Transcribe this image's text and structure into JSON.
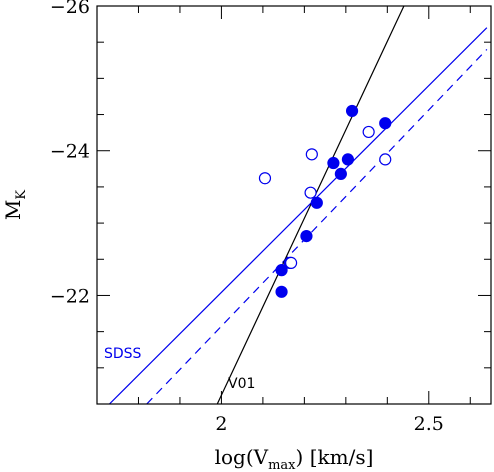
{
  "chart_data": {
    "type": "scatter",
    "title": "",
    "xlabel": {
      "base": "log(V",
      "sub": "max",
      "tail": ")  [km/s]"
    },
    "ylabel": {
      "base": "M",
      "sub": "K"
    },
    "xlim": [
      1.7,
      2.65
    ],
    "ylim": [
      -20.5,
      -26
    ],
    "y_inverted": true,
    "grid": false,
    "x_ticks": [
      2,
      2.5
    ],
    "x_tick_labels": [
      "2",
      "2.5"
    ],
    "y_ticks": [
      -22,
      -24,
      -26
    ],
    "y_tick_labels": [
      "-22",
      "-24",
      "-26"
    ],
    "series": [
      {
        "marker": "filled-circle",
        "color": "#0000ee",
        "points": [
          [
            2.315,
            -24.55
          ],
          [
            2.395,
            -24.38
          ],
          [
            2.305,
            -23.88
          ],
          [
            2.27,
            -23.83
          ],
          [
            2.288,
            -23.68
          ],
          [
            2.23,
            -23.28
          ],
          [
            2.205,
            -22.82
          ],
          [
            2.145,
            -22.35
          ],
          [
            2.145,
            -22.05
          ],
          [
            2.165,
            -22.45
          ]
        ]
      },
      {
        "marker": "open-circle",
        "color": "#0000ee",
        "points": [
          [
            2.105,
            -23.62
          ],
          [
            2.218,
            -23.95
          ],
          [
            2.215,
            -23.42
          ],
          [
            2.355,
            -24.26
          ],
          [
            2.395,
            -23.88
          ],
          [
            2.168,
            -22.45
          ]
        ]
      }
    ],
    "lines": [
      {
        "label": "SDSS",
        "color": "#0000ee",
        "style": "solid",
        "x": [
          1.73,
          2.64
        ],
        "y": [
          -20.5,
          -25.7
        ]
      },
      {
        "label": "",
        "color": "#0000ee",
        "style": "dashed",
        "x": [
          1.82,
          2.64
        ],
        "y": [
          -20.5,
          -25.4
        ]
      },
      {
        "label": "V01",
        "color": "#000000",
        "style": "solid",
        "x": [
          1.99,
          2.44
        ],
        "y": [
          -20.5,
          -26.0
        ]
      }
    ],
    "annotations": [
      {
        "text": "SDSS",
        "color": "#0000ee"
      },
      {
        "text": "V01",
        "color": "#000000"
      }
    ]
  }
}
